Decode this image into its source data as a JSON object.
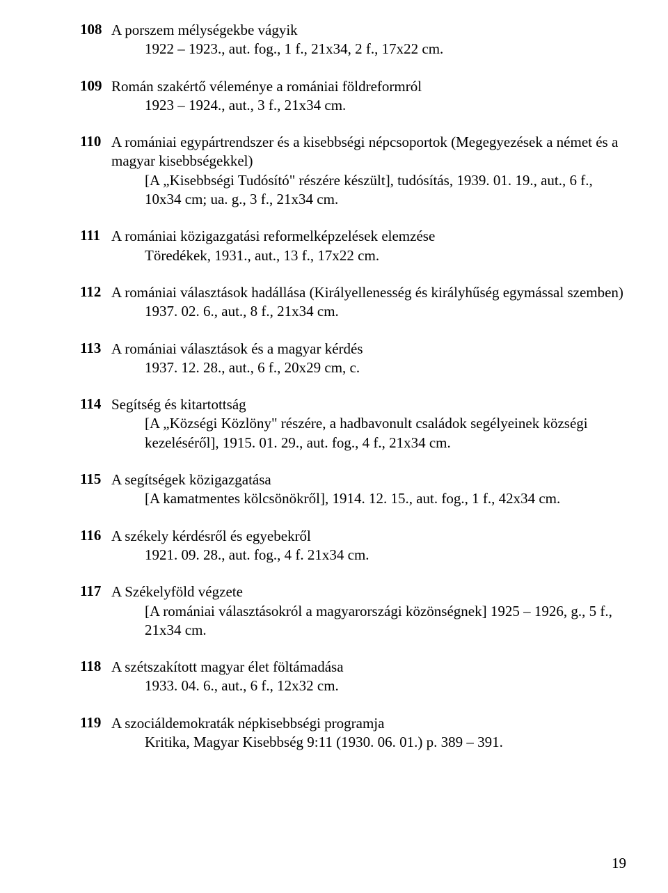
{
  "entries": [
    {
      "num": "108",
      "title": "A porszem mélységekbe vágyik",
      "details": [
        "1922 – 1923., aut. fog., 1 f., 21x34, 2 f., 17x22 cm."
      ]
    },
    {
      "num": "109",
      "title": "Román szakértő véleménye a romániai földreformról",
      "details": [
        "1923 – 1924., aut., 3 f., 21x34 cm."
      ]
    },
    {
      "num": "110",
      "title": "A romániai egypártrendszer és a kisebbségi népcsoportok (Megegyezések a német és a magyar kisebbségekkel)",
      "details": [
        "[A „Kisebbségi Tudósító\" részére készült], tudósítás, 1939. 01. 19., aut., 6 f., 10x34 cm; ua. g., 3 f., 21x34 cm."
      ]
    },
    {
      "num": "111",
      "title": "A romániai közigazgatási reformelképzelések elemzése",
      "details": [
        "Töredékek, 1931., aut., 13 f., 17x22 cm."
      ]
    },
    {
      "num": "112",
      "title": "A romániai választások hadállása (Királyellenesség és királyhűség egymással szemben)",
      "details": [
        "1937. 02. 6., aut., 8 f., 21x34 cm."
      ]
    },
    {
      "num": "113",
      "title": "A romániai választások és a magyar kérdés",
      "details": [
        "1937. 12. 28., aut., 6 f., 20x29 cm, c."
      ]
    },
    {
      "num": "114",
      "title": "Segítség és kitartottság",
      "details": [
        "[A „Községi Közlöny\" részére, a hadbavonult családok segélyeinek községi kezeléséről], 1915. 01. 29., aut. fog., 4 f., 21x34 cm."
      ]
    },
    {
      "num": "115",
      "title": "A segítségek közigazgatása",
      "details": [
        "[A kamatmentes kölcsönökről], 1914. 12. 15., aut. fog., 1 f., 42x34 cm."
      ]
    },
    {
      "num": "116",
      "title": "A székely kérdésről és egyebekről",
      "details": [
        "1921. 09. 28., aut. fog., 4 f. 21x34 cm."
      ]
    },
    {
      "num": "117",
      "title": "A Székelyföld végzete",
      "details": [
        "[A romániai választásokról a magyarországi közönségnek] 1925 – 1926, g., 5 f., 21x34 cm."
      ]
    },
    {
      "num": "118",
      "title": "A szétszakított magyar élet föltámadása",
      "details": [
        "1933. 04. 6., aut., 6 f., 12x32 cm."
      ]
    },
    {
      "num": "119",
      "title": "A szociáldemokraták népkisebbségi programja",
      "details": [
        "Kritika, Magyar Kisebbség 9:11 (1930. 06. 01.) p. 389 – 391."
      ]
    }
  ],
  "page_number": "19"
}
